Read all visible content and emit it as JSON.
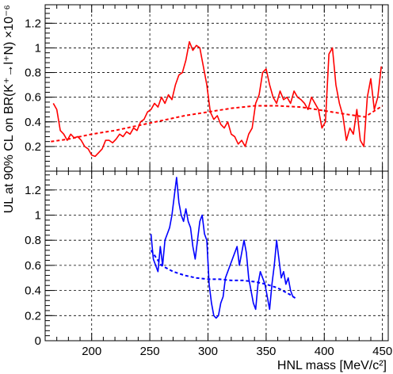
{
  "chart_data": [
    {
      "type": "line",
      "panel": "top",
      "xlim": [
        160,
        455
      ],
      "ylim": [
        0,
        1.35
      ],
      "yticks": [
        0.2,
        0.4,
        0.6,
        0.8,
        1,
        1.2
      ],
      "ytick_labels": [
        "0.2",
        "0.4",
        "0.6",
        "0.8",
        "1",
        "1.2"
      ],
      "grid": true,
      "series": [
        {
          "style": "solid",
          "color": "#ff0000",
          "x": [
            167,
            170,
            173,
            176,
            179,
            182,
            185,
            188,
            191,
            194,
            197,
            200,
            203,
            206,
            209,
            212,
            215,
            218,
            221,
            224,
            227,
            230,
            233,
            236,
            239,
            242,
            245,
            248,
            251,
            254,
            257,
            260,
            263,
            266,
            269,
            272,
            275,
            278,
            281,
            284,
            287,
            290,
            293,
            296,
            299,
            302,
            305,
            308,
            311,
            314,
            317,
            320,
            323,
            326,
            329,
            332,
            335,
            338,
            341,
            344,
            347,
            350,
            353,
            356,
            359,
            362,
            365,
            368,
            371,
            374,
            377,
            380,
            383,
            386,
            389,
            392,
            395,
            398,
            401,
            404,
            407,
            410,
            413,
            416,
            419,
            422,
            425,
            428,
            431,
            434,
            437,
            440,
            443,
            446,
            449
          ],
          "y": [
            0.55,
            0.5,
            0.33,
            0.3,
            0.25,
            0.3,
            0.27,
            0.28,
            0.25,
            0.2,
            0.18,
            0.13,
            0.12,
            0.15,
            0.18,
            0.25,
            0.25,
            0.23,
            0.26,
            0.3,
            0.28,
            0.32,
            0.3,
            0.35,
            0.33,
            0.4,
            0.42,
            0.48,
            0.5,
            0.55,
            0.52,
            0.6,
            0.55,
            0.62,
            0.58,
            0.7,
            0.78,
            0.8,
            0.9,
            1.05,
            0.98,
            1.02,
            1.0,
            0.85,
            0.7,
            0.48,
            0.42,
            0.45,
            0.38,
            0.35,
            0.4,
            0.3,
            0.28,
            0.22,
            0.25,
            0.2,
            0.3,
            0.35,
            0.55,
            0.62,
            0.8,
            0.83,
            0.7,
            0.6,
            0.55,
            0.65,
            0.58,
            0.6,
            0.55,
            0.65,
            0.6,
            0.58,
            0.55,
            0.5,
            0.6,
            0.55,
            0.5,
            0.35,
            0.4,
            0.95,
            1.0,
            0.7,
            0.55,
            0.45,
            0.25,
            0.35,
            0.3,
            0.5,
            0.25,
            0.2,
            0.6,
            0.75,
            0.5,
            0.6,
            0.85
          ]
        },
        {
          "style": "dashed",
          "color": "#ff0000",
          "x": [
            165,
            180,
            200,
            220,
            240,
            260,
            280,
            300,
            320,
            340,
            360,
            380,
            400,
            420,
            435,
            450
          ],
          "y": [
            0.24,
            0.26,
            0.3,
            0.33,
            0.37,
            0.41,
            0.45,
            0.48,
            0.51,
            0.53,
            0.53,
            0.52,
            0.49,
            0.46,
            0.44,
            0.53
          ]
        }
      ]
    },
    {
      "type": "line",
      "panel": "bottom",
      "xlim": [
        160,
        455
      ],
      "ylim": [
        0,
        1.35
      ],
      "yticks": [
        0,
        0.2,
        0.4,
        0.6,
        0.8,
        1,
        1.2
      ],
      "ytick_labels": [
        "0",
        "0.2",
        "0.4",
        "0.6",
        "0.8",
        "1",
        "1.2"
      ],
      "xticks": [
        200,
        250,
        300,
        350,
        400,
        450
      ],
      "xtick_labels": [
        "200",
        "250",
        "300",
        "350",
        "400",
        "450"
      ],
      "grid": true,
      "xlabel": "HNL mass [MeV/c²]",
      "ylabel": "UL at 90% CL on BR(K⁺→l⁺N) ×10⁻⁶",
      "series": [
        {
          "style": "solid",
          "color": "#0000ff",
          "x": [
            251,
            253,
            255,
            257,
            259,
            261,
            263,
            265,
            267,
            269,
            271,
            273,
            275,
            277,
            279,
            281,
            283,
            285,
            287,
            289,
            291,
            293,
            295,
            297,
            299,
            301,
            303,
            305,
            307,
            309,
            311,
            313,
            315,
            317,
            319,
            321,
            323,
            325,
            327,
            329,
            331,
            333,
            335,
            337,
            339,
            341,
            343,
            345,
            347,
            349,
            351,
            353,
            355,
            357,
            359,
            361,
            363,
            365,
            367,
            369,
            371,
            373
          ],
          "y": [
            0.85,
            0.65,
            0.6,
            0.55,
            0.75,
            0.6,
            0.8,
            0.85,
            0.9,
            1.0,
            1.15,
            1.3,
            1.1,
            1.0,
            0.95,
            1.05,
            0.95,
            0.9,
            0.75,
            0.65,
            0.8,
            0.95,
            1.0,
            0.85,
            0.8,
            0.45,
            0.3,
            0.2,
            0.18,
            0.2,
            0.3,
            0.35,
            0.5,
            0.55,
            0.6,
            0.65,
            0.7,
            0.75,
            0.6,
            0.7,
            0.8,
            0.7,
            0.5,
            0.4,
            0.3,
            0.25,
            0.45,
            0.55,
            0.5,
            0.45,
            0.35,
            0.25,
            0.45,
            0.6,
            0.8,
            0.65,
            0.5,
            0.55,
            0.45,
            0.5,
            0.4,
            0.35
          ]
        },
        {
          "style": "dashed",
          "color": "#0000ff",
          "x": [
            251,
            260,
            270,
            280,
            290,
            300,
            310,
            320,
            330,
            340,
            350,
            360,
            370,
            375
          ],
          "y": [
            0.72,
            0.6,
            0.55,
            0.52,
            0.5,
            0.49,
            0.49,
            0.48,
            0.48,
            0.47,
            0.45,
            0.42,
            0.37,
            0.34
          ]
        }
      ]
    }
  ]
}
